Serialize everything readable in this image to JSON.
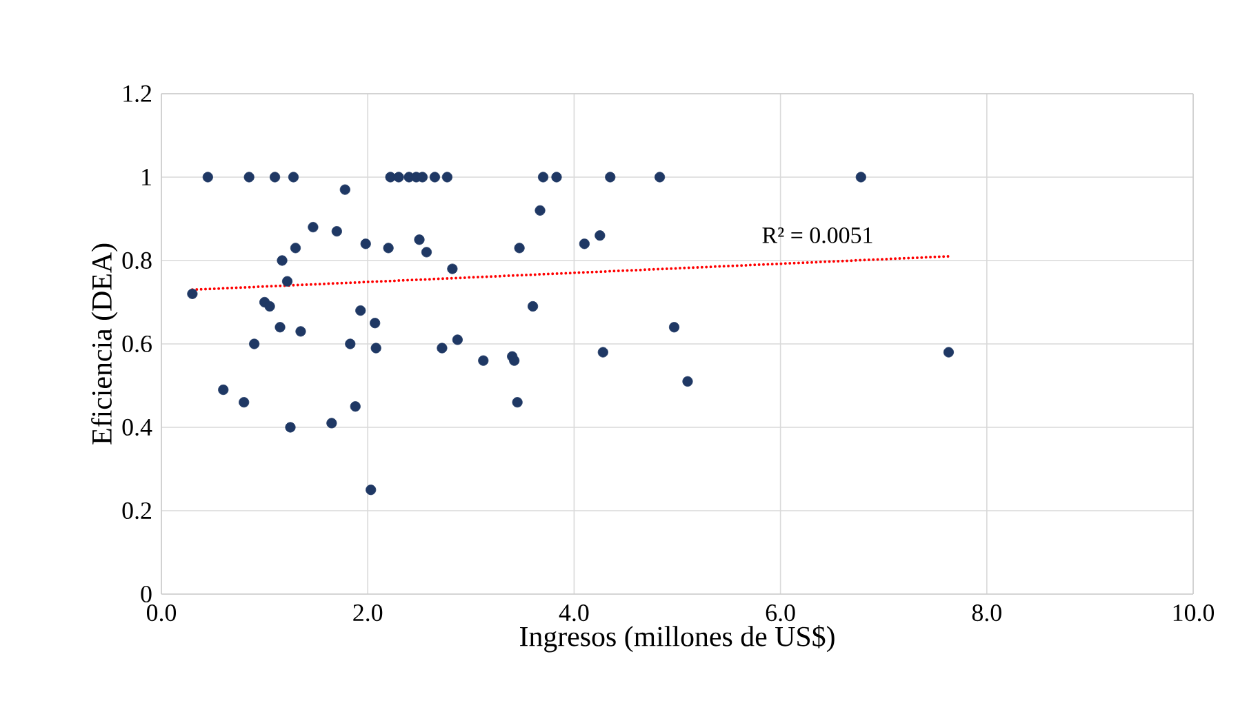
{
  "chart_data": {
    "type": "scatter",
    "xlabel": "Ingresos (millones de US$)",
    "ylabel": "Eficiencia (DEA)",
    "xlim": [
      0,
      10
    ],
    "xticks": [
      {
        "value": 0,
        "label": "0.0"
      },
      {
        "value": 2,
        "label": "2.0"
      },
      {
        "value": 4,
        "label": "4.0"
      },
      {
        "value": 6,
        "label": "6.0"
      },
      {
        "value": 8,
        "label": "8.0"
      },
      {
        "value": 10,
        "label": "10.0"
      }
    ],
    "ylim": [
      0,
      1.2
    ],
    "yticks": [
      0,
      0.2,
      0.4,
      0.6,
      0.8,
      1,
      1.2
    ],
    "grid": true,
    "annotations": [
      "R² = 0.0051"
    ],
    "series": [
      {
        "color": "#1f3864",
        "marker": "circle",
        "x": [
          0.3,
          0.45,
          0.6,
          0.8,
          0.85,
          0.9,
          1.0,
          1.05,
          1.1,
          1.15,
          1.17,
          1.22,
          1.25,
          1.28,
          1.3,
          1.35,
          1.47,
          1.65,
          1.7,
          1.78,
          1.83,
          1.88,
          1.93,
          1.98,
          2.03,
          2.07,
          2.08,
          2.2,
          2.22,
          2.3,
          2.4,
          2.47,
          2.5,
          2.53,
          2.57,
          2.65,
          2.72,
          2.77,
          2.82,
          2.87,
          3.12,
          3.4,
          3.42,
          3.45,
          3.47,
          3.6,
          3.67,
          3.7,
          3.83,
          4.1,
          4.25,
          4.28,
          4.35,
          4.83,
          4.97,
          5.1,
          6.78,
          7.63
        ],
        "values": [
          0.72,
          1,
          0.49,
          0.46,
          1,
          0.6,
          0.7,
          0.69,
          1,
          0.64,
          0.8,
          0.75,
          0.4,
          1,
          0.83,
          0.63,
          0.88,
          0.41,
          0.87,
          0.97,
          0.6,
          0.45,
          0.68,
          0.84,
          0.25,
          0.65,
          0.59,
          0.83,
          1,
          1,
          1,
          1,
          0.85,
          1,
          0.82,
          1,
          0.59,
          1,
          0.78,
          0.61,
          0.56,
          0.57,
          0.56,
          0.46,
          0.83,
          0.69,
          0.92,
          1,
          1,
          0.84,
          0.86,
          0.58,
          1,
          1,
          0.64,
          0.51,
          1,
          0.58
        ]
      },
      {
        "type": "line",
        "color": "#ff0000",
        "line_style": "dotted",
        "marker": "none",
        "x": [
          0.3,
          7.63
        ],
        "values": [
          0.73,
          0.81
        ]
      }
    ]
  }
}
